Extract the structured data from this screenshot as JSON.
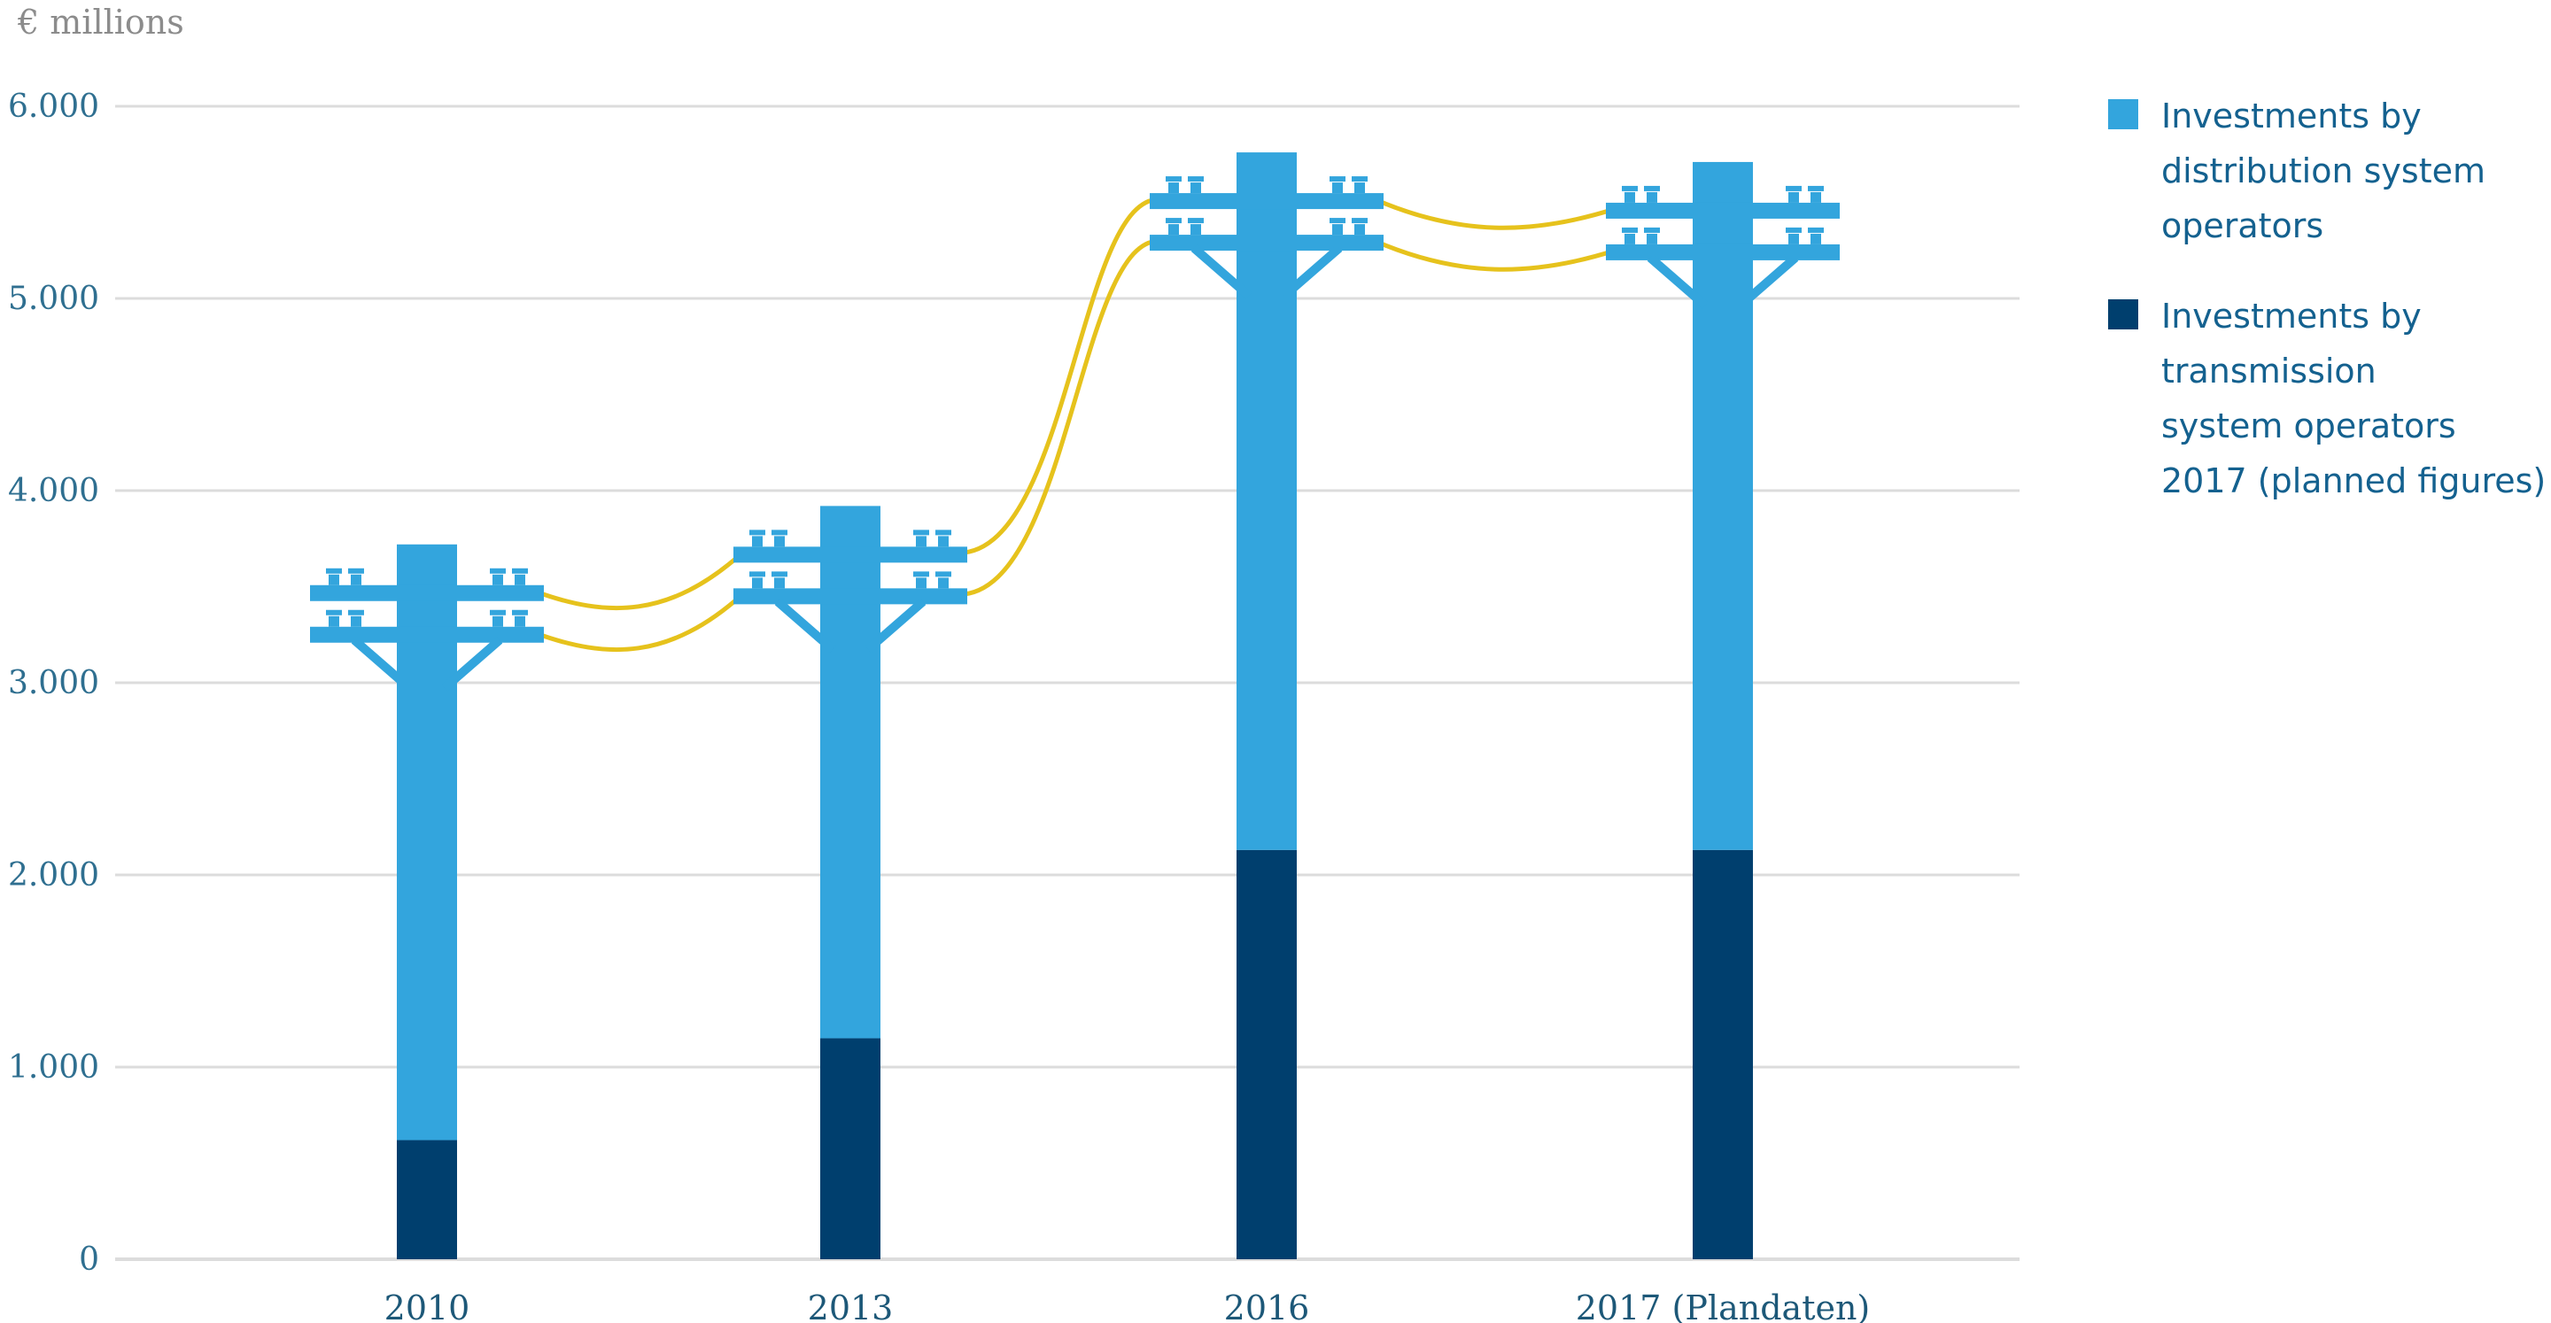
{
  "chart_data": {
    "type": "bar",
    "stacked": true,
    "unit_label": "€ millions",
    "categories": [
      "2010",
      "2013",
      "2016",
      "2017 (Plandaten)"
    ],
    "series": [
      {
        "name": "Investments by\ntransmission\nsystem operators\n2017 (planned figures)",
        "color": "#003f6e",
        "values": [
          620,
          1150,
          2130,
          2130
        ]
      },
      {
        "name": "Investments by\ndistribution system\noperators",
        "color": "#33a5dd",
        "values": [
          3100,
          2770,
          3630,
          3580
        ]
      }
    ],
    "ylim": [
      0,
      6000
    ],
    "yticks": [
      "0",
      "1.000",
      "2.000",
      "3.000",
      "4.000",
      "5.000",
      "6.000"
    ],
    "ytick_values": [
      0,
      1000,
      2000,
      3000,
      4000,
      5000,
      6000
    ],
    "grid": true,
    "legend_position": "right",
    "decoration": "utility-pole crossarms connected by yellow power lines",
    "wire_color": "#e6c21c",
    "axis_color": "#dcdcdc"
  }
}
